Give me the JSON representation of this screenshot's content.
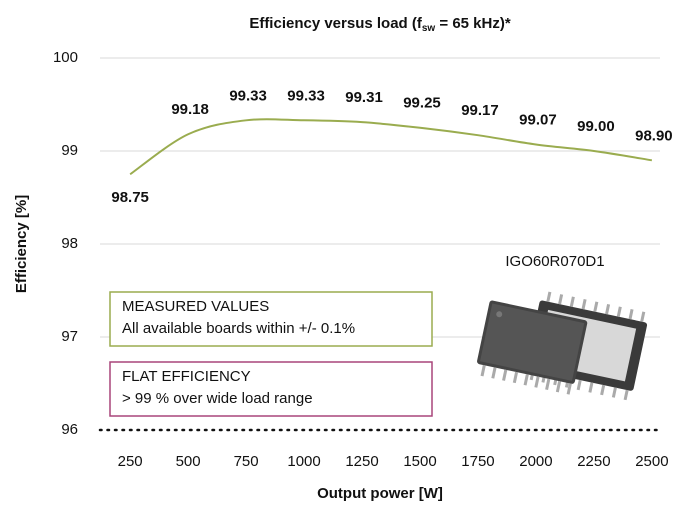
{
  "chart_data": {
    "type": "line",
    "title": [
      "Efficiency versus load (f",
      "sw",
      " = 65 kHz)*"
    ],
    "x_label": "Output power [W]",
    "y_label": "Efficiency [%]",
    "x": [
      250,
      500,
      750,
      1000,
      1250,
      1500,
      1750,
      2000,
      2250,
      2500
    ],
    "series": [
      {
        "name": "IGO60R070D1",
        "color": "#9aac4f",
        "values": [
          98.75,
          99.18,
          99.33,
          99.33,
          99.31,
          99.25,
          99.17,
          99.07,
          99.0,
          98.9
        ],
        "value_labels": [
          "98.75",
          "99.18",
          "99.33",
          "99.33",
          "99.31",
          "99.25",
          "99.17",
          "99.07",
          "99.00",
          "98.90"
        ]
      }
    ],
    "xlim": [
      120,
      2535
    ],
    "ylim": [
      96,
      100
    ],
    "xticks": [
      250,
      500,
      750,
      1000,
      1250,
      1500,
      1750,
      2000,
      2250,
      2500
    ],
    "yticks": [
      96,
      97,
      98,
      99,
      100
    ],
    "grid": true,
    "boxes": [
      {
        "lines": [
          "MEASURED VALUES",
          "All available boards within +/- 0.1%"
        ],
        "color": "#9aac4f"
      },
      {
        "lines": [
          "FLAT EFFICIENCY",
          "> 99 % over wide load range"
        ],
        "color": "#a8457a"
      }
    ]
  }
}
